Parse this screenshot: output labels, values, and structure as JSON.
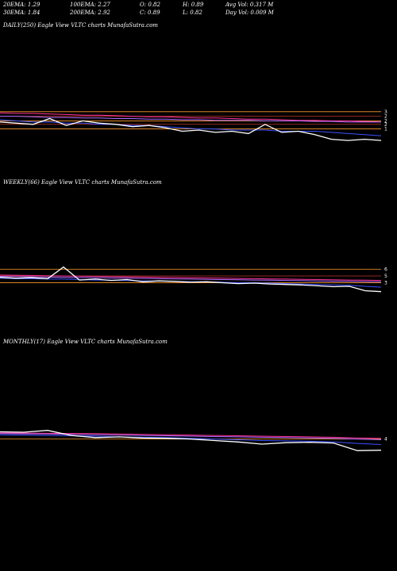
{
  "header": {
    "row1": [
      "20EMA: 1.29",
      "100EMA: 2.27",
      "O: 0.82",
      "H: 0.89",
      "Avg Vol: 0.317 M"
    ],
    "row2": [
      "30EMA: 1.84",
      "200EMA: 2.92",
      "C: 0.89",
      "L: 0.82",
      "Day Vol: 0.009 M"
    ]
  },
  "colors": {
    "background": "#000000",
    "price": "#ffffff",
    "ema_fast": "#3a52ff",
    "ema_slow": "#ff3399",
    "ema_long": "#b36bff",
    "ref_line": "#ff9a2e",
    "ref_line_dark": "#c0392b"
  },
  "chart_data": [
    {
      "type": "line",
      "label": "DAILY(250) Eagle  View  VLTC charts MunafaSutra.com",
      "y_ticks": [
        "3",
        "2",
        "2",
        "2",
        "1"
      ],
      "ref_levels": [
        3.0,
        2.6,
        2.2,
        1.9,
        1.5
      ],
      "series": {
        "price": [
          2.1,
          2.0,
          1.9,
          2.4,
          1.8,
          2.2,
          2.0,
          1.9,
          1.7,
          1.8,
          1.6,
          1.3,
          1.4,
          1.2,
          1.3,
          1.1,
          1.9,
          1.2,
          1.3,
          1.0,
          0.6,
          0.5,
          0.6,
          0.5
        ],
        "ema20": [
          2.3,
          2.2,
          2.1,
          2.1,
          2.0,
          2.0,
          1.9,
          1.9,
          1.8,
          1.8,
          1.7,
          1.6,
          1.5,
          1.5,
          1.4,
          1.4,
          1.4,
          1.3,
          1.3,
          1.3,
          1.2,
          1.1,
          1.0,
          0.9
        ],
        "ema100": [
          2.6,
          2.6,
          2.55,
          2.5,
          2.5,
          2.45,
          2.45,
          2.4,
          2.4,
          2.35,
          2.35,
          2.3,
          2.3,
          2.25,
          2.25,
          2.25,
          2.2,
          2.2,
          2.2,
          2.15,
          2.15,
          2.1,
          2.1,
          2.1
        ],
        "ema200": [
          2.9,
          2.85,
          2.85,
          2.8,
          2.75,
          2.7,
          2.7,
          2.65,
          2.6,
          2.55,
          2.55,
          2.5,
          2.45,
          2.45,
          2.4,
          2.35,
          2.35,
          2.3,
          2.25,
          2.25,
          2.2,
          2.2,
          2.15,
          2.1
        ]
      }
    },
    {
      "type": "line",
      "label": "WEEKLY(66) Eagle  View  VLTC charts MunafaSutra.com",
      "y_ticks": [
        "6",
        "5",
        "3"
      ],
      "ref_levels": [
        6.0,
        4.5,
        3.0
      ],
      "series": {
        "price": [
          4.2,
          4.0,
          4.1,
          3.9,
          6.5,
          3.6,
          3.8,
          3.5,
          3.7,
          3.2,
          3.4,
          3.3,
          3.1,
          3.2,
          3.0,
          2.8,
          2.9,
          2.7,
          2.6,
          2.5,
          2.3,
          2.1,
          2.2,
          1.2,
          1.0
        ],
        "ema20": [
          4.0,
          3.9,
          3.9,
          3.8,
          3.8,
          3.7,
          3.6,
          3.6,
          3.5,
          3.4,
          3.4,
          3.3,
          3.2,
          3.2,
          3.1,
          3.0,
          3.0,
          2.9,
          2.8,
          2.7,
          2.6,
          2.5,
          2.4,
          2.2,
          2.0
        ],
        "ema100": [
          4.4,
          4.35,
          4.3,
          4.25,
          4.2,
          4.15,
          4.1,
          4.05,
          4.0,
          3.95,
          3.9,
          3.85,
          3.8,
          3.75,
          3.7,
          3.65,
          3.6,
          3.55,
          3.5,
          3.45,
          3.4,
          3.35,
          3.3,
          3.25,
          3.2
        ],
        "ema200": [
          4.7,
          4.65,
          4.6,
          4.55,
          4.5,
          4.45,
          4.4,
          4.35,
          4.3,
          4.25,
          4.2,
          4.15,
          4.1,
          4.05,
          4.0,
          3.95,
          3.9,
          3.85,
          3.8,
          3.75,
          3.7,
          3.65,
          3.6,
          3.55,
          3.5
        ]
      }
    },
    {
      "type": "line",
      "label": "MONTHLY(17) Eagle  View  VLTC charts MunafaSutra.com",
      "y_ticks": [
        "4"
      ],
      "ref_levels": [
        4.0
      ],
      "series": {
        "price": [
          6.0,
          5.9,
          6.4,
          5.0,
          4.4,
          4.6,
          4.3,
          4.2,
          4.0,
          3.6,
          3.2,
          2.6,
          3.0,
          3.1,
          2.9,
          0.8,
          0.9
        ],
        "ema20": [
          5.2,
          5.1,
          5.0,
          4.9,
          4.8,
          4.6,
          4.5,
          4.4,
          4.2,
          4.0,
          3.8,
          3.6,
          3.5,
          3.4,
          3.2,
          2.8,
          2.5
        ],
        "ema100": [
          5.5,
          5.45,
          5.4,
          5.3,
          5.2,
          5.1,
          5.0,
          4.9,
          4.8,
          4.7,
          4.6,
          4.5,
          4.4,
          4.3,
          4.2,
          4.0,
          3.8
        ],
        "ema200": [
          5.7,
          5.65,
          5.6,
          5.55,
          5.5,
          5.4,
          5.3,
          5.2,
          5.1,
          5.0,
          4.9,
          4.8,
          4.7,
          4.6,
          4.5,
          4.3,
          4.2
        ]
      }
    }
  ]
}
